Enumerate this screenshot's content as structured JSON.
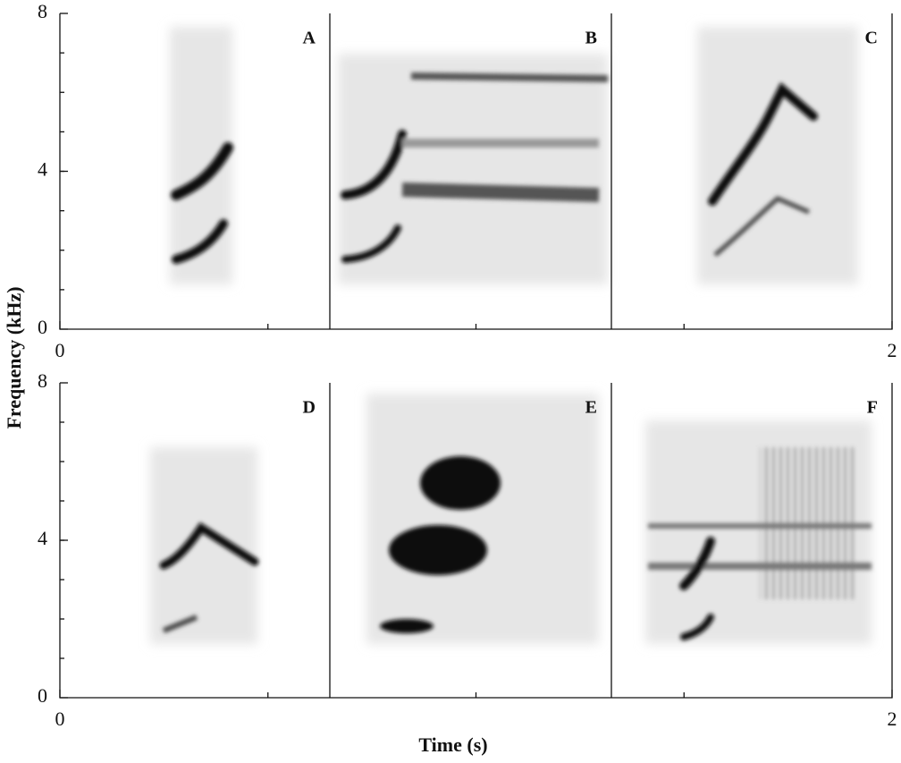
{
  "chart_data": [
    {
      "type": "spectrogram",
      "panels": [
        "A",
        "B",
        "C"
      ],
      "ylabel": "Frequency (kHz)",
      "xlim": [
        0,
        2
      ],
      "xticks": [
        0,
        2
      ],
      "ylim": [
        0,
        8
      ],
      "yticks": [
        0,
        4,
        8
      ]
    },
    {
      "type": "spectrogram",
      "panels": [
        "D",
        "E",
        "F"
      ],
      "xlabel": "Time (s)",
      "xlim": [
        0,
        2
      ],
      "xticks": [
        0,
        2
      ],
      "ylim": [
        0,
        8
      ],
      "yticks": [
        0,
        4,
        8
      ]
    }
  ]
}
